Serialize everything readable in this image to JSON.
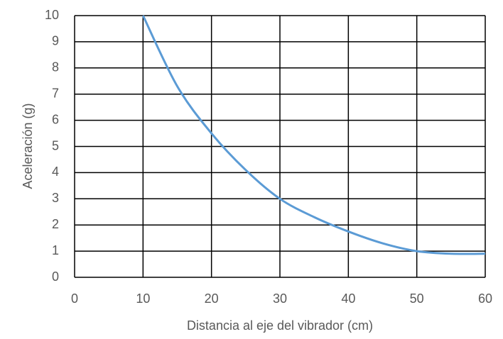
{
  "chart_data": {
    "type": "line",
    "x_label": "Distancia al eje del vibrador (cm)",
    "y_label": "Aceleración (g)",
    "x": [
      10,
      15,
      20,
      25,
      30,
      35,
      40,
      45,
      50,
      55,
      60
    ],
    "series": [
      {
        "name": "Aceleración",
        "color": "#5b9bd5",
        "values": [
          10,
          7.3,
          5.5,
          4.1,
          3.0,
          2.3,
          1.75,
          1.3,
          1.0,
          0.9,
          0.9
        ]
      }
    ],
    "xlim": [
      0,
      60
    ],
    "xticks": [
      0,
      10,
      20,
      30,
      40,
      50,
      60
    ],
    "ylim": [
      0,
      10
    ],
    "yticks": [
      0,
      1,
      2,
      3,
      4,
      5,
      6,
      7,
      8,
      9,
      10
    ],
    "grid": true
  }
}
